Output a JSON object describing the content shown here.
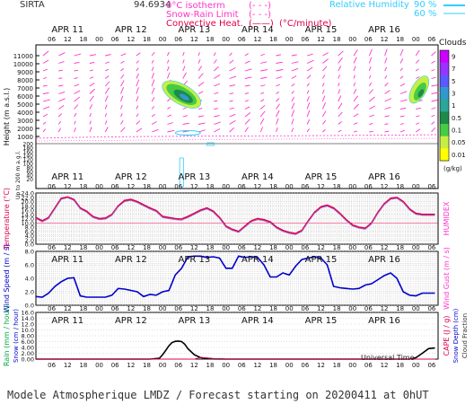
{
  "header": {
    "station": "SIRTA",
    "coords": "94.6934",
    "legend_left": [
      {
        "label": "0°C isotherm",
        "color": "#ff33cc",
        "line": "(- - -)"
      },
      {
        "label": "Snow-Rain Limit",
        "color": "#ff33cc",
        "line": "(- - -)"
      },
      {
        "label": "Convective Heat.",
        "color": "#e0004a",
        "line": "(——)",
        "unit": "(°C/minute)"
      }
    ],
    "legend_right": [
      {
        "label": "Relative Humidity",
        "value": "90 %",
        "color": "#33ccff"
      },
      {
        "value": "60 %",
        "color": "#33ccff"
      }
    ]
  },
  "time_axis": {
    "days": [
      "APR 11",
      "APR 12",
      "APR 13",
      "APR 14",
      "APR 15",
      "APR 16"
    ],
    "hours": [
      "06",
      "12",
      "18",
      "00"
    ],
    "xlabel": "Universal Time"
  },
  "footer": {
    "text": "Modele Atmospherique LMDZ / Forecast starting on 20200411 at 0hUT"
  },
  "colors": {
    "magenta": "#ff33cc",
    "red": "#e0004a",
    "blue": "#0000cc",
    "cyan": "#33ccff",
    "black": "#000000"
  },
  "chart_data": [
    {
      "type": "heatmap",
      "ylabel": "Height (m a.s.l.)",
      "ylabel2": "Up to 200 m a.g.l.",
      "yticks_upper": [
        11000,
        10000,
        9000,
        8000,
        7000,
        6000,
        5000,
        4000,
        3000,
        2000,
        1000
      ],
      "yticks_lower": [
        200,
        180,
        160,
        140,
        120,
        100,
        80,
        60,
        40,
        20
      ],
      "colorbar": {
        "title": "Clouds",
        "unit": "(g/kg)",
        "labels": [
          "9",
          "7",
          "5",
          "3",
          "1",
          "0.5",
          "0.1",
          "0.05",
          "0.01"
        ],
        "colors": [
          "#cc00ff",
          "#9a33ff",
          "#5a5aff",
          "#3399cc",
          "#2aa69a",
          "#1e8a4a",
          "#44cc44",
          "#c8ee44",
          "#ffff00"
        ]
      },
      "cloud_features": [
        {
          "center_day": 2.3,
          "center_height": 6200,
          "label": "cloud APR 12-13"
        },
        {
          "center_day": 6.05,
          "center_height": 6800,
          "label": "cloud APR 17"
        }
      ]
    },
    {
      "type": "line",
      "ylabel": "Temperature (°C)",
      "ylabel2": "HUMIDEX",
      "ylim": [
        0,
        24
      ],
      "yticks": [
        "0.0",
        "2.0",
        "4.0",
        "6.0",
        "8.0",
        "10.0",
        "12.0",
        "14.0",
        "16.0",
        "18.0",
        "20.0",
        "22.0",
        "24.0"
      ],
      "x": [
        0.0,
        0.1,
        0.2,
        0.3,
        0.4,
        0.5,
        0.6,
        0.7,
        0.8,
        0.9,
        1.0,
        1.1,
        1.2,
        1.3,
        1.4,
        1.5,
        1.6,
        1.7,
        1.8,
        1.9,
        2.0,
        2.1,
        2.2,
        2.3,
        2.4,
        2.5,
        2.6,
        2.7,
        2.8,
        2.9,
        3.0,
        3.1,
        3.2,
        3.3,
        3.4,
        3.5,
        3.6,
        3.7,
        3.8,
        3.9,
        4.0,
        4.1,
        4.2,
        4.3,
        4.4,
        4.5,
        4.6,
        4.7,
        4.8,
        4.9,
        5.0,
        5.1,
        5.2,
        5.3,
        5.4,
        5.5,
        5.6,
        5.7,
        5.8,
        5.9,
        6.0,
        6.1,
        6.2,
        6.3
      ],
      "series": [
        {
          "color": "#e0004a",
          "values": [
            12.5,
            11.0,
            12.5,
            17.0,
            21.5,
            22.2,
            21.0,
            17.0,
            15.5,
            13.0,
            12.0,
            12.3,
            14.0,
            18.0,
            20.5,
            21.0,
            20.0,
            18.5,
            17.0,
            15.8,
            13.0,
            12.5,
            12.0,
            11.8,
            13.0,
            14.5,
            16.0,
            17.0,
            15.5,
            12.5,
            8.5,
            7.0,
            6.0,
            8.5,
            11.0,
            12.0,
            11.5,
            10.5,
            8.0,
            6.5,
            5.5,
            5.0,
            6.5,
            11.0,
            15.0,
            17.5,
            18.3,
            17.0,
            14.5,
            11.5,
            9.0,
            8.0,
            7.5,
            10.0,
            15.0,
            19.0,
            21.5,
            22.0,
            20.0,
            16.5,
            14.5,
            14.0,
            14.0,
            14.0
          ]
        },
        {
          "color": "#9966cc",
          "values": [
            12.0,
            10.5,
            12.0,
            16.5,
            21.0,
            21.8,
            20.5,
            16.5,
            15.0,
            12.5,
            11.5,
            11.8,
            13.5,
            17.5,
            20.0,
            20.5,
            19.5,
            18.0,
            16.5,
            15.3,
            12.5,
            12.0,
            11.5,
            11.3,
            12.5,
            14.0,
            15.5,
            16.5,
            15.0,
            12.0,
            8.0,
            6.5,
            5.5,
            8.0,
            10.5,
            11.5,
            11.0,
            10.0,
            7.5,
            6.0,
            5.0,
            4.5,
            6.0,
            10.5,
            14.5,
            17.0,
            17.8,
            16.5,
            14.0,
            11.0,
            8.5,
            7.5,
            7.0,
            9.5,
            14.5,
            18.5,
            21.0,
            21.5,
            19.5,
            16.0,
            14.0,
            13.5,
            13.5,
            13.5
          ]
        }
      ]
    },
    {
      "type": "line",
      "ylabel": "Wind Speed (m / s)",
      "ylabel2": "Wind Gust (m / s)",
      "ylim": [
        0,
        8
      ],
      "yticks": [
        "0.0",
        "2.0",
        "4.0",
        "6.0",
        "8.0"
      ],
      "x": [
        0.0,
        0.1,
        0.2,
        0.3,
        0.4,
        0.5,
        0.6,
        0.7,
        0.8,
        0.9,
        1.0,
        1.1,
        1.2,
        1.3,
        1.4,
        1.5,
        1.6,
        1.7,
        1.8,
        1.9,
        2.0,
        2.1,
        2.2,
        2.3,
        2.4,
        2.5,
        2.6,
        2.7,
        2.8,
        2.9,
        3.0,
        3.1,
        3.2,
        3.3,
        3.4,
        3.5,
        3.6,
        3.7,
        3.8,
        3.9,
        4.0,
        4.1,
        4.2,
        4.3,
        4.4,
        4.5,
        4.6,
        4.7,
        4.8,
        4.9,
        5.0,
        5.1,
        5.2,
        5.3,
        5.4,
        5.5,
        5.6,
        5.7,
        5.8,
        5.9,
        6.0,
        6.1,
        6.2,
        6.3
      ],
      "series": [
        {
          "color": "#0000cc",
          "values": [
            1.3,
            1.2,
            1.8,
            2.8,
            3.5,
            4.0,
            4.1,
            1.4,
            1.2,
            1.2,
            1.2,
            1.2,
            1.5,
            2.5,
            2.4,
            2.2,
            2.0,
            1.3,
            1.6,
            1.5,
            2.0,
            2.2,
            4.5,
            5.5,
            7.2,
            7.3,
            7.3,
            7.1,
            7.2,
            7.0,
            5.5,
            5.5,
            7.3,
            7.1,
            7.2,
            7.1,
            6.0,
            4.2,
            4.2,
            4.8,
            4.5,
            5.8,
            6.8,
            7.0,
            7.2,
            7.0,
            6.0,
            2.8,
            2.6,
            2.5,
            2.4,
            2.5,
            3.0,
            3.2,
            3.8,
            4.4,
            4.8,
            4.0,
            2.0,
            1.5,
            1.4,
            1.8,
            1.8,
            1.8
          ]
        }
      ]
    },
    {
      "type": "line",
      "ylabel": "Rain (mm / hour)",
      "ylabel_snow": "Snow (cm / hour)",
      "ylabel2": "CAPE (J / g)",
      "ylabel2_snow": "Snow Depth (cm)",
      "ylabel2_cloud": "Cloud Fraction",
      "ylim": [
        0,
        16
      ],
      "yticks": [
        "0.00",
        "2.00",
        "4.00",
        "6.00",
        "8.00",
        "10.0",
        "12.0",
        "14.0",
        "16.0"
      ],
      "x": [
        0.0,
        0.5,
        1.0,
        1.5,
        1.8,
        1.95,
        2.0,
        2.05,
        2.1,
        2.15,
        2.2,
        2.25,
        2.3,
        2.35,
        2.4,
        2.5,
        2.6,
        2.8,
        3.0,
        4.0,
        5.0,
        5.8,
        5.9,
        6.0,
        6.1,
        6.2,
        6.3
      ],
      "series": [
        {
          "color": "#000000",
          "values": [
            0,
            0,
            0,
            0,
            0,
            0.3,
            1.5,
            3.0,
            4.6,
            5.7,
            6.1,
            6.2,
            6.0,
            5.1,
            3.6,
            1.5,
            0.5,
            0.1,
            0,
            0,
            0,
            0,
            0,
            0.5,
            2.0,
            3.6,
            3.8
          ]
        },
        {
          "color": "#e0004a",
          "values": [
            0,
            0,
            0,
            0,
            0,
            0,
            0,
            0,
            0,
            0,
            0,
            0,
            0,
            0,
            0,
            0,
            0.6,
            0.2,
            0,
            0,
            0,
            0,
            0,
            0,
            0,
            0,
            0
          ]
        }
      ]
    }
  ]
}
